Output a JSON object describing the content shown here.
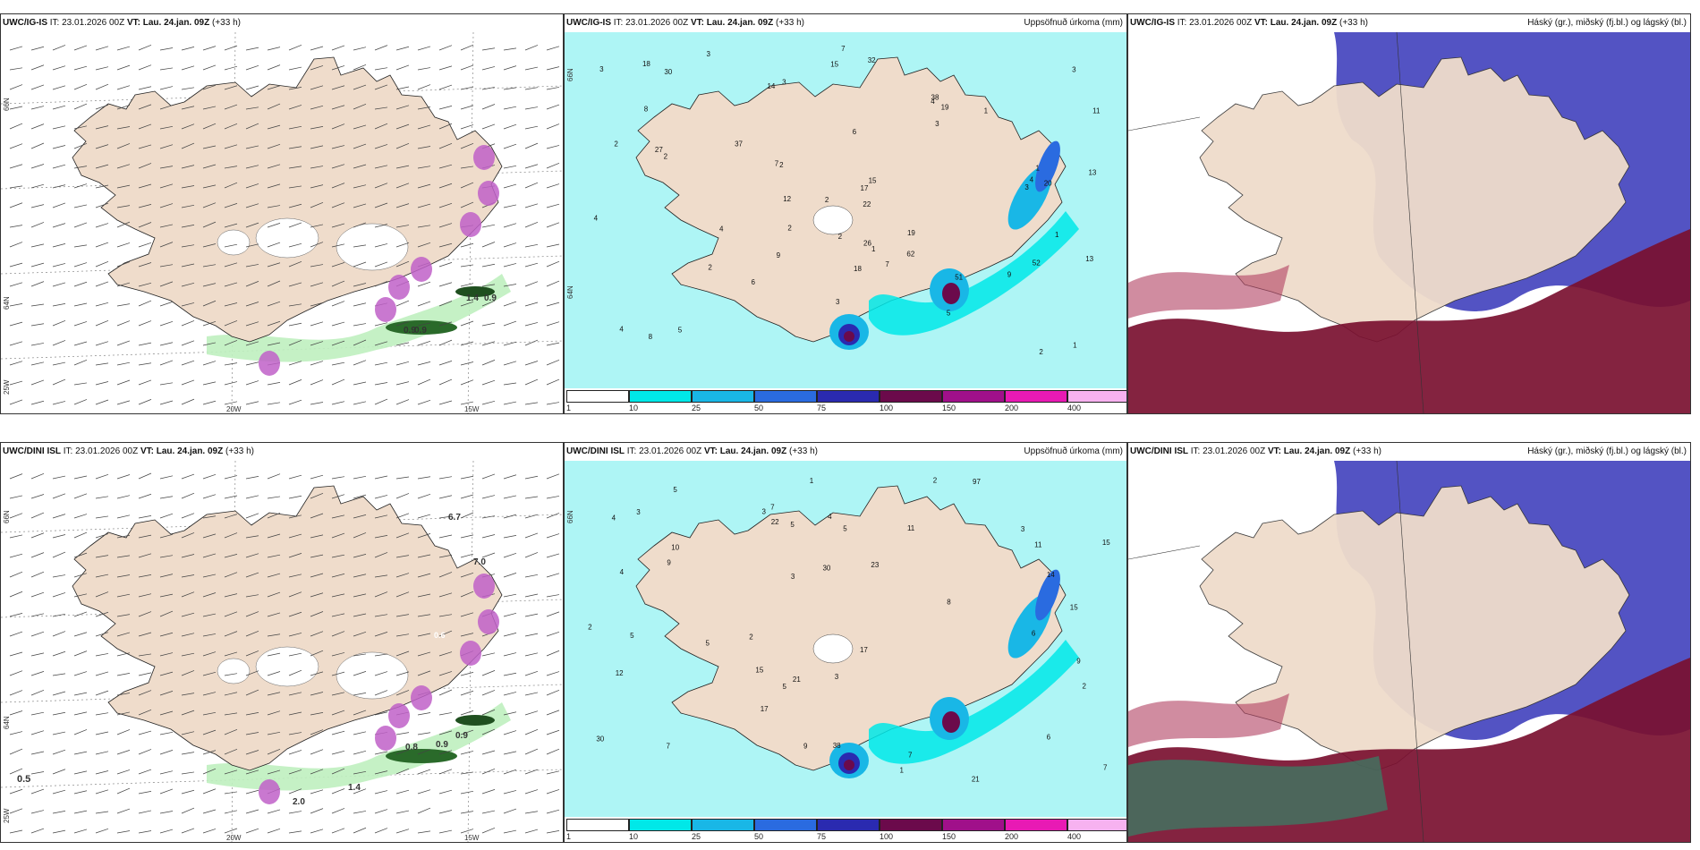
{
  "colors": {
    "land": "#efdccb",
    "precip_light": "#aef5f5",
    "precip_cyan": "#00e8e8",
    "precip_mid": "#19b7e6",
    "precip_blue": "#2a6be0",
    "precip_dark": "#2a2ab0",
    "precip_maroon": "#6b0a4b",
    "precip_purple": "#a0108a",
    "precip_magenta": "#e81ab4",
    "precip_pink": "#f7b2f0",
    "cloud_high": "#b9b1a8",
    "cloud_mid": "#4a4ac0",
    "cloud_low": "#7a1030",
    "green": "#3aa040",
    "icing_purple": "#c060c8"
  },
  "panels": [
    {
      "id": "top-left",
      "model": "UWC/IG-IS",
      "it_label": "IT:",
      "it_value": "23.01.2026 00Z",
      "vt_label": "VT:",
      "vt_value": "Lau. 24.jan. 09Z",
      "lead": "(+33 h)",
      "lon_labels": [
        "20W",
        "15W"
      ],
      "lat_labels": [
        "66N",
        "64N",
        "25W"
      ],
      "values": [
        "0.9",
        "0.9",
        "1.4",
        "0.9"
      ]
    },
    {
      "id": "top-middle",
      "model": "UWC/IG-IS",
      "it_label": "IT:",
      "it_value": "23.01.2026 00Z",
      "vt_label": "VT:",
      "vt_value": "Lau. 24.jan. 09Z",
      "lead": "(+33 h)",
      "right_title": "Uppsöfnuð úrkoma (mm)",
      "lat_labels": [
        "66N",
        "64N"
      ],
      "precip_values": [
        "1",
        "2",
        "3",
        "3",
        "2",
        "1",
        "7",
        "2",
        "1",
        "2",
        "3",
        "1",
        "3",
        "2",
        "3",
        "3",
        "12",
        "5",
        "8",
        "27",
        "4",
        "32",
        "38",
        "51",
        "62",
        "37",
        "9",
        "19",
        "14",
        "7",
        "4",
        "5",
        "4",
        "8",
        "18",
        "13",
        "2",
        "3",
        "9",
        "18",
        "19",
        "22",
        "26",
        "52",
        "15",
        "15",
        "17",
        "13",
        "20",
        "11",
        "6",
        "2",
        "6",
        "1",
        "4",
        "7",
        "4",
        "30",
        "2"
      ],
      "colorbar_labels": [
        "1",
        "10",
        "25",
        "50",
        "75",
        "100",
        "150",
        "200",
        "400"
      ]
    },
    {
      "id": "top-right",
      "model": "UWC/IG-IS",
      "it_label": "IT:",
      "it_value": "23.01.2026 00Z",
      "vt_label": "VT:",
      "vt_value": "Lau. 24.jan. 09Z",
      "lead": "(+33 h)",
      "right_title": "Háský (gr.), miðský (fj.bl.) og lágský (bl.)"
    },
    {
      "id": "bottom-left",
      "model": "UWC/DINI ISL",
      "it_label": "IT:",
      "it_value": "23.01.2026 00Z",
      "vt_label": "VT:",
      "vt_value": "Lau. 24.jan. 09Z",
      "lead": "(+33 h)",
      "lon_labels": [
        "20W",
        "15W"
      ],
      "lat_labels": [
        "66N",
        "64N",
        "25W"
      ],
      "values": [
        "0.5",
        "0.8",
        "0.9",
        "0.9",
        "1.4",
        "2.0",
        "0.6",
        "7.0",
        "6.7"
      ]
    },
    {
      "id": "bottom-middle",
      "model": "UWC/DINI ISL",
      "it_label": "IT:",
      "it_value": "23.01.2026 00Z",
      "vt_label": "VT:",
      "vt_value": "Lau. 24.jan. 09Z",
      "lead": "(+33 h)",
      "right_title": "Uppsöfnuð úrkoma (mm)",
      "lat_labels": [
        "66N"
      ],
      "precip_values": [
        "3",
        "2",
        "3",
        "7",
        "5",
        "3",
        "1",
        "2",
        "5",
        "5",
        "2",
        "15",
        "21",
        "30",
        "38",
        "11",
        "17",
        "10",
        "7",
        "15",
        "97",
        "22",
        "21",
        "17",
        "23",
        "15",
        "11",
        "12",
        "6",
        "4",
        "5",
        "9",
        "5",
        "3",
        "1",
        "4",
        "14",
        "8",
        "2",
        "30",
        "4",
        "5",
        "9",
        "6",
        "7",
        "7",
        "9",
        "3"
      ],
      "colorbar_labels": [
        "1",
        "10",
        "25",
        "50",
        "75",
        "100",
        "150",
        "200",
        "400"
      ]
    },
    {
      "id": "bottom-right",
      "model": "UWC/DINI ISL",
      "it_label": "IT:",
      "it_value": "23.01.2026 00Z",
      "vt_label": "VT:",
      "vt_value": "Lau. 24.jan. 09Z",
      "lead": "(+33 h)",
      "right_title": "Háský (gr.), miðský (fj.bl.) og lágský (bl.)"
    }
  ]
}
